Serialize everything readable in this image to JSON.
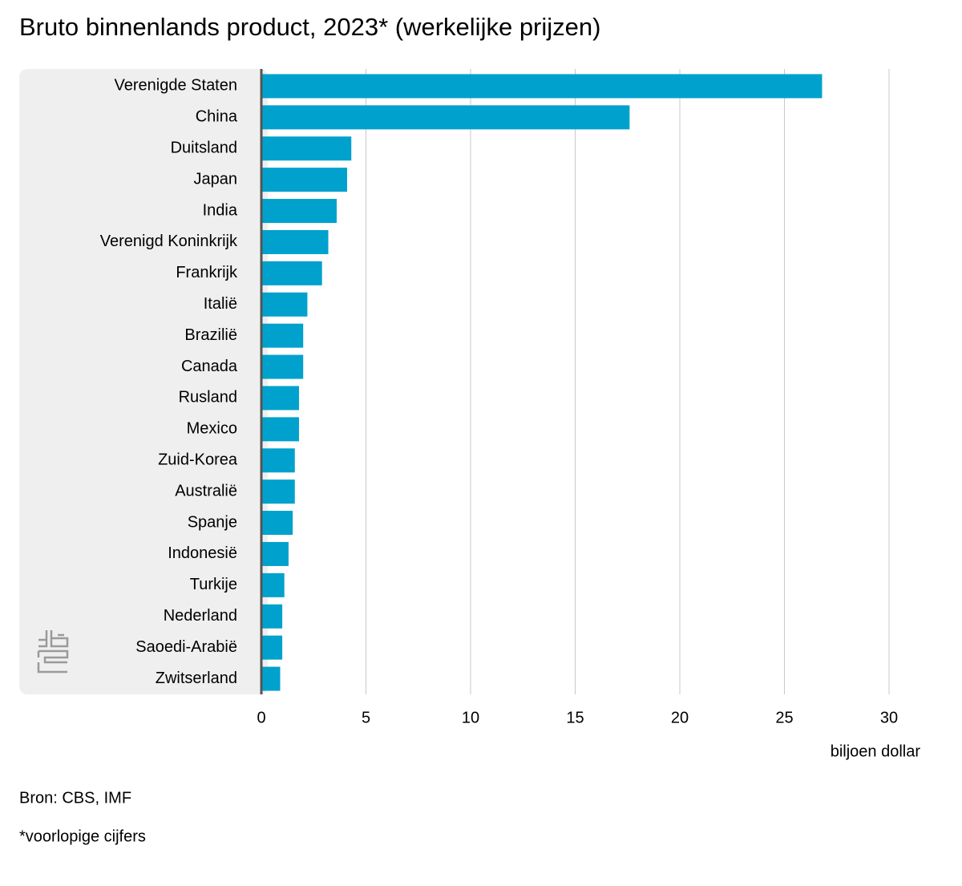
{
  "chart_data": {
    "type": "barh",
    "title": "Bruto binnenlands product, 2023* (werkelijke prijzen)",
    "categories": [
      "Verenigde Staten",
      "China",
      "Duitsland",
      "Japan",
      "India",
      "Verenigd Koninkrijk",
      "Frankrijk",
      "Italië",
      "Brazilië",
      "Canada",
      "Rusland",
      "Mexico",
      "Zuid-Korea",
      "Australië",
      "Spanje",
      "Indonesië",
      "Turkije",
      "Nederland",
      "Saoedi-Arabië",
      "Zwitserland"
    ],
    "values": [
      26.8,
      17.6,
      4.3,
      4.1,
      3.6,
      3.2,
      2.9,
      2.2,
      2.0,
      2.0,
      1.8,
      1.8,
      1.6,
      1.6,
      1.5,
      1.3,
      1.1,
      1.0,
      1.0,
      0.9
    ],
    "color": "#00a1cd",
    "xlim": [
      0,
      30
    ],
    "xticks": [
      0,
      5,
      10,
      15,
      20,
      25,
      30
    ],
    "grid": true,
    "x_label": "biljoen dollar",
    "source": "Bron: CBS, IMF",
    "note": "*voorlopige cijfers"
  }
}
